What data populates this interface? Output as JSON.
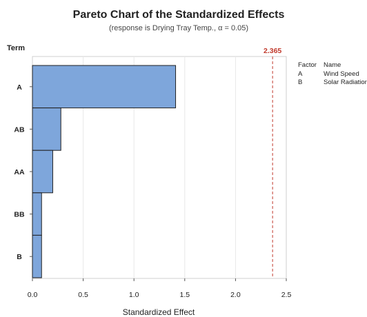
{
  "chart_data": {
    "type": "bar",
    "orientation": "horizontal",
    "title": "Pareto Chart of the Standardized Effects",
    "subtitle": "(response is Drying Tray Temp., α = 0.05)",
    "xlabel": "Standardized Effect",
    "ylabel": "Term",
    "categories": [
      "A",
      "AB",
      "AA",
      "BB",
      "B"
    ],
    "values": [
      1.41,
      0.28,
      0.2,
      0.09,
      0.09
    ],
    "xlim": [
      0,
      2.5
    ],
    "xticks": [
      "0.0",
      "0.5",
      "1.0",
      "1.5",
      "2.0",
      "2.5"
    ],
    "reference_line": {
      "value": 2.365,
      "label": "2.365",
      "color": "#c0392b",
      "style": "dashed"
    },
    "bar_color": "#7ea6db",
    "bar_edge_color": "#1f1f1f",
    "grid": true,
    "legend": {
      "placement": "right",
      "headers": [
        "Factor",
        "Name"
      ],
      "rows": [
        {
          "factor": "A",
          "name": "Wind Speed"
        },
        {
          "factor": "B",
          "name": "Solar Radiation"
        }
      ]
    }
  }
}
